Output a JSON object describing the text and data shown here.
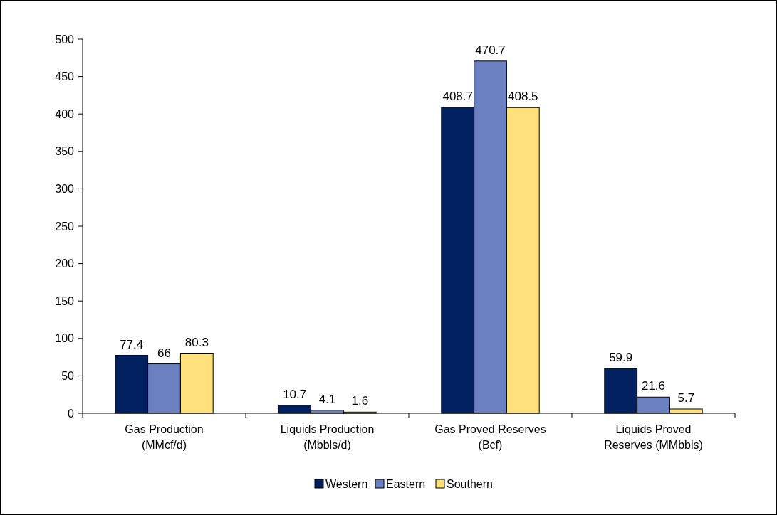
{
  "chart_data": {
    "type": "bar",
    "categories": [
      "Gas Production\n(MMcf/d)",
      "Liquids Production\n(Mbbls/d)",
      "Gas Proved Reserves\n(Bcf)",
      "Liquids Proved\nReserves (MMbbls)"
    ],
    "series": [
      {
        "name": "Western",
        "color": "#002060",
        "values": [
          77.4,
          10.7,
          408.7,
          59.9
        ]
      },
      {
        "name": "Eastern",
        "color": "#6b80c0",
        "values": [
          66,
          4.1,
          470.7,
          21.6
        ]
      },
      {
        "name": "Southern",
        "color": "#ffe07a",
        "values": [
          80.3,
          1.6,
          408.5,
          5.7
        ]
      }
    ],
    "ylim": [
      0,
      500
    ],
    "yticks": [
      0,
      50,
      100,
      150,
      200,
      250,
      300,
      350,
      400,
      450,
      500
    ],
    "data_labels": true,
    "legend": "bottom",
    "grid": false
  }
}
